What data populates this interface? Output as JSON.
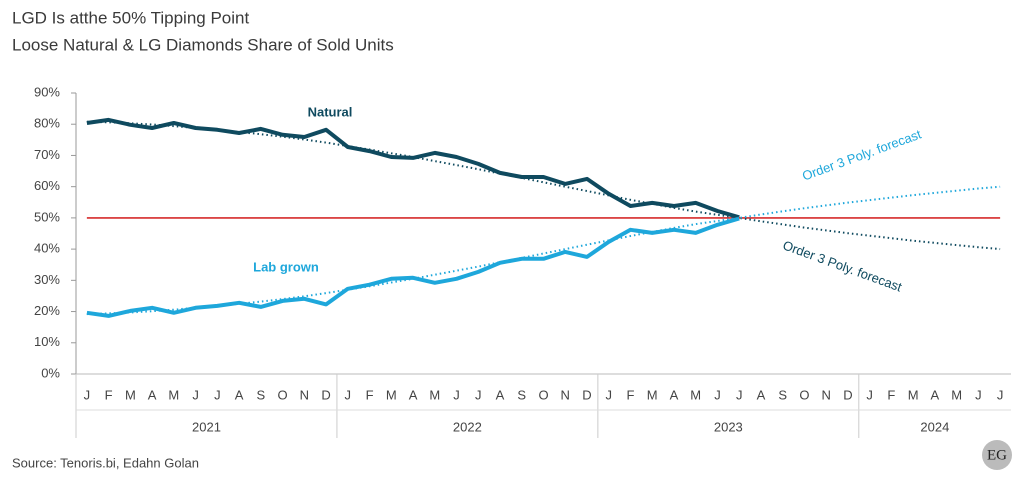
{
  "chart_data": {
    "type": "line",
    "title": "LGD Is atthe 50% Tipping Point",
    "subtitle": "Loose Natural & LG Diamonds Share of Sold Units",
    "categories": [
      "J",
      "F",
      "M",
      "A",
      "M",
      "J",
      "J",
      "A",
      "S",
      "O",
      "N",
      "D",
      "J",
      "F",
      "M",
      "A",
      "M",
      "J",
      "J",
      "A",
      "S",
      "O",
      "N",
      "D",
      "J",
      "F",
      "M",
      "A",
      "M",
      "J",
      "J",
      "A",
      "S",
      "O",
      "N",
      "D",
      "J",
      "F",
      "M",
      "A",
      "M",
      "J",
      "J"
    ],
    "years": [
      "2021",
      "2022",
      "2023",
      "2024"
    ],
    "series": [
      {
        "name": "Natural",
        "color": "#0f4a5f",
        "style": "solid",
        "values": [
          80.4,
          81.4,
          79.8,
          78.8,
          80.4,
          78.8,
          78.2,
          77.2,
          78.5,
          76.6,
          75.9,
          78.2,
          72.7,
          71.4,
          69.5,
          69.2,
          70.8,
          69.5,
          67.3,
          64.4,
          63.1,
          63.1,
          60.9,
          62.5,
          57.7,
          53.8,
          54.8,
          53.8,
          54.8,
          52.2,
          50.2,
          null,
          null,
          null,
          null,
          null,
          null,
          null,
          null,
          null,
          null,
          null,
          null
        ]
      },
      {
        "name": "Lab grown",
        "color": "#1ea7db",
        "style": "solid",
        "values": [
          19.6,
          18.6,
          20.2,
          21.2,
          19.6,
          21.2,
          21.8,
          22.8,
          21.5,
          23.4,
          24.1,
          22.3,
          27.3,
          28.6,
          30.5,
          30.8,
          29.2,
          30.5,
          32.7,
          35.6,
          36.9,
          36.9,
          39.1,
          37.5,
          42.3,
          46.2,
          45.2,
          46.2,
          45.2,
          47.8,
          49.8,
          null,
          null,
          null,
          null,
          null,
          null,
          null,
          null,
          null,
          null,
          null,
          null
        ]
      },
      {
        "name": "Order 3 Poly. forecast",
        "color": "#0f4a5f",
        "style": "dotted",
        "values": [
          80.8,
          80.6,
          80.3,
          79.9,
          79.4,
          78.8,
          78.2,
          77.5,
          76.8,
          76,
          75.1,
          74.1,
          73,
          71.9,
          70.7,
          69.5,
          68.2,
          66.9,
          65.6,
          64.2,
          62.8,
          61.4,
          60,
          58.6,
          57.2,
          55.8,
          54.5,
          53.2,
          52,
          51,
          50,
          48.9,
          47.9,
          46.9,
          46,
          45.1,
          44.3,
          43.5,
          42.7,
          42,
          41.3,
          40.6,
          40
        ]
      },
      {
        "name": "Order 3 Poly. forecast",
        "color": "#1ea7db",
        "style": "dotted",
        "values": [
          19.2,
          19.4,
          19.7,
          20.1,
          20.6,
          21.2,
          21.8,
          22.5,
          23.2,
          24,
          24.9,
          25.9,
          27,
          28.1,
          29.3,
          30.5,
          31.8,
          33.1,
          34.4,
          35.8,
          37.2,
          38.6,
          40,
          41.4,
          42.8,
          44.2,
          45.5,
          46.8,
          48,
          49,
          50,
          51.1,
          52.1,
          53.1,
          54,
          54.9,
          55.7,
          56.5,
          57.3,
          58,
          58.7,
          59.4,
          60
        ]
      }
    ],
    "reference_line": {
      "value": 50,
      "color": "#d62b2b"
    },
    "ylim": [
      0,
      90
    ],
    "yticks": [
      {
        "value": 0,
        "label": "0%"
      },
      {
        "value": 10,
        "label": "10%"
      },
      {
        "value": 20,
        "label": "20%"
      },
      {
        "value": 30,
        "label": "30%"
      },
      {
        "value": 40,
        "label": "40%"
      },
      {
        "value": 50,
        "label": "50%"
      },
      {
        "value": 60,
        "label": "60%"
      },
      {
        "value": 70,
        "label": "70%"
      },
      {
        "value": 80,
        "label": "80%"
      },
      {
        "value": 90,
        "label": "90%"
      }
    ],
    "source": "Source: Tenoris.bi, Edahn Golan",
    "badge": "EG"
  }
}
